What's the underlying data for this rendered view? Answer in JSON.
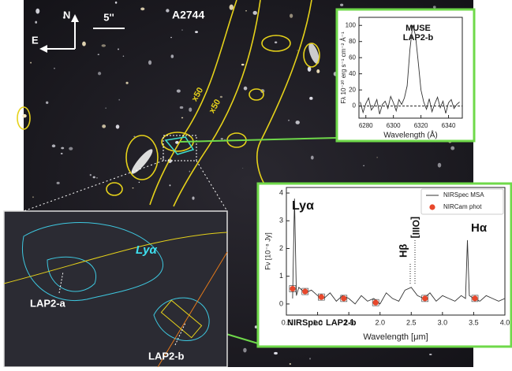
{
  "image": {
    "target": "A2744",
    "compass_n": "N",
    "compass_e": "E",
    "scale": "5''",
    "contour_labels": [
      "x50",
      "x50"
    ],
    "zoom": {
      "lya": "Lyα",
      "source_a": "LAP2-a",
      "source_b": "LAP2-b"
    }
  },
  "chart_data": [
    {
      "type": "line",
      "title": "MUSE",
      "subtitle": "LAP2-b",
      "x_label": "Wavelength (Å)",
      "y_label": "Fλ 10⁻²⁰ erg s⁻¹ cm⁻² Å⁻¹",
      "xlim": [
        6275,
        6350
      ],
      "xticks": [
        6280,
        6300,
        6320,
        6340
      ],
      "ylim": [
        -15,
        110
      ],
      "yticks": [
        0,
        20,
        40,
        60,
        80,
        100
      ],
      "zero_line": true,
      "series": [
        {
          "color": "#333333",
          "style": "line",
          "x": [
            6276,
            6278,
            6280,
            6282,
            6284,
            6286,
            6288,
            6290,
            6292,
            6294,
            6296,
            6298,
            6300,
            6302,
            6304,
            6306,
            6308,
            6310,
            6312,
            6314,
            6316,
            6318,
            6320,
            6322,
            6324,
            6326,
            6328,
            6330,
            6332,
            6334,
            6336,
            6338,
            6340,
            6342,
            6344,
            6346,
            6348
          ],
          "values": [
            5,
            -8,
            3,
            10,
            -5,
            0,
            8,
            -10,
            2,
            6,
            -3,
            12,
            4,
            -6,
            8,
            2,
            10,
            25,
            70,
            100,
            88,
            55,
            20,
            5,
            -4,
            9,
            -7,
            3,
            11,
            -2,
            6,
            -9,
            4,
            8,
            -3,
            2,
            5
          ]
        }
      ]
    },
    {
      "type": "line",
      "x_label": "Wavelength [μm]",
      "y_label": "Fν [10⁻⁸ Jy]",
      "xlim": [
        0.5,
        4.0
      ],
      "xticks": [
        0.5,
        {
          "value": 1,
          "label": "1.0"
        },
        1.5,
        {
          "value": 2,
          "label": "2.0"
        },
        2.5,
        {
          "value": 3,
          "label": "3.0"
        },
        3.5,
        {
          "value": 4,
          "label": "4.0"
        }
      ],
      "ylim": [
        -0.4,
        4.2
      ],
      "yticks": [
        0,
        1,
        2,
        3,
        4
      ],
      "legend": "upper-right",
      "annotations": [
        "Lyα",
        "[OIII]",
        "Hβ",
        "Hα",
        "NIRSpec",
        "LAP2-b"
      ],
      "series": [
        {
          "name": "NIRSpec MSA",
          "color": "#333333",
          "style": "line",
          "x": [
            0.6,
            0.63,
            0.66,
            0.7,
            0.8,
            0.9,
            1.0,
            1.1,
            1.2,
            1.3,
            1.4,
            1.5,
            1.6,
            1.7,
            1.8,
            1.9,
            2.0,
            2.1,
            2.2,
            2.3,
            2.4,
            2.5,
            2.6,
            2.7,
            2.8,
            2.9,
            3.0,
            3.1,
            3.2,
            3.3,
            3.37,
            3.4,
            3.43,
            3.5,
            3.6,
            3.7,
            3.8,
            3.9,
            4.0
          ],
          "values": [
            0.2,
            3.8,
            0.3,
            0.6,
            0.4,
            0.5,
            0.3,
            0.2,
            0.4,
            0.1,
            0.3,
            0.2,
            0.0,
            0.3,
            0.1,
            0.2,
            0.0,
            0.4,
            0.2,
            0.1,
            0.5,
            0.6,
            0.3,
            0.2,
            0.4,
            0.1,
            0.3,
            0.2,
            0.1,
            0.3,
            0.2,
            2.3,
            0.3,
            0.2,
            0.1,
            0.3,
            0.2,
            0.1,
            0.2
          ]
        },
        {
          "name": "NIRCam phot",
          "color": "#e8472b",
          "style": "marker",
          "x": [
            0.6,
            0.8,
            1.06,
            1.42,
            1.93,
            2.72,
            3.52
          ],
          "values": [
            0.55,
            0.45,
            0.25,
            0.2,
            0.05,
            0.2,
            0.2
          ]
        }
      ]
    }
  ]
}
